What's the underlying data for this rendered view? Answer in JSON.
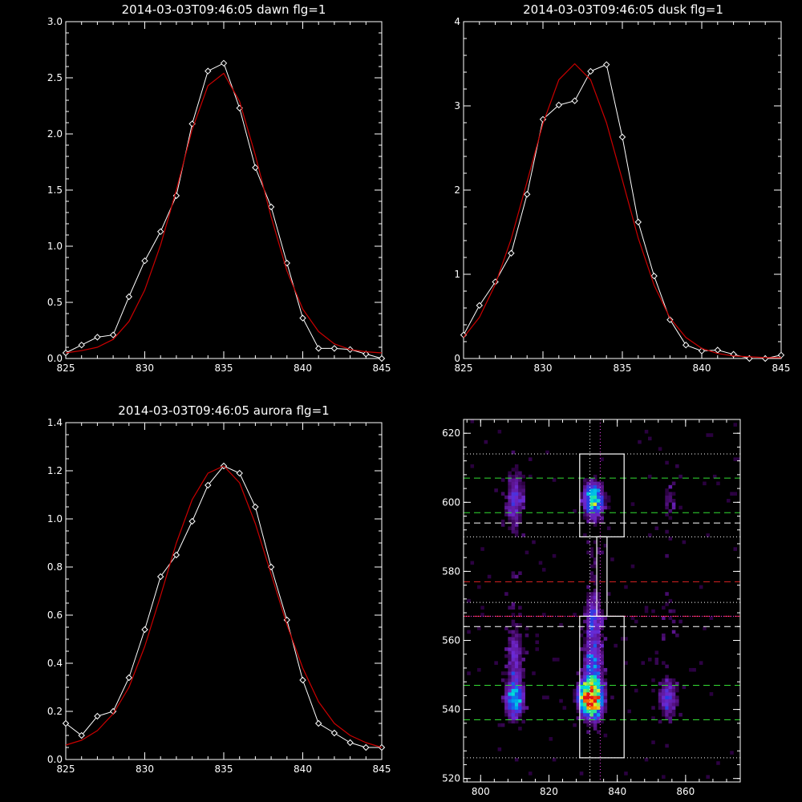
{
  "colors": {
    "background": "#000000",
    "axes": "#ffffff",
    "data_line": "#ffffff",
    "fit_line": "#cc0000",
    "green_dash": "#33dd33",
    "red_dash": "#dd2222",
    "magenta_dot": "#ff44ff",
    "white_dot": "#ffffff"
  },
  "chart_data": [
    {
      "type": "line",
      "title": "2014-03-03T09:46:05 dawn flg=1",
      "xlim": [
        825,
        845
      ],
      "ylim": [
        0,
        3.0
      ],
      "x_tick_labels": [
        "825",
        "830",
        "835",
        "840",
        "845"
      ],
      "y_tick_labels": [
        "0.0",
        "0.5",
        "1.0",
        "1.5",
        "2.0",
        "2.5",
        "3.0"
      ],
      "series": [
        {
          "kind": "data",
          "marker": "diamond",
          "x": [
            825,
            826,
            827,
            828,
            829,
            830,
            831,
            832,
            833,
            834,
            835,
            836,
            837,
            838,
            839,
            840,
            841,
            842,
            843,
            844,
            845
          ],
          "y": [
            0.05,
            0.12,
            0.19,
            0.21,
            0.55,
            0.87,
            1.13,
            1.45,
            2.09,
            2.56,
            2.63,
            2.23,
            1.7,
            1.35,
            0.85,
            0.36,
            0.09,
            0.09,
            0.08,
            0.04,
            0.0
          ]
        },
        {
          "kind": "fit",
          "x": [
            825,
            826,
            827,
            828,
            829,
            830,
            831,
            832,
            833,
            834,
            835,
            836,
            837,
            838,
            839,
            840,
            841,
            842,
            843,
            844,
            845
          ],
          "y": [
            0.05,
            0.07,
            0.1,
            0.17,
            0.33,
            0.61,
            1.01,
            1.5,
            2.04,
            2.43,
            2.54,
            2.29,
            1.81,
            1.26,
            0.78,
            0.44,
            0.24,
            0.13,
            0.08,
            0.06,
            0.05
          ]
        }
      ]
    },
    {
      "type": "line",
      "title": "2014-03-03T09:46:05 dusk flg=1",
      "xlim": [
        825,
        845
      ],
      "ylim": [
        0,
        4
      ],
      "x_tick_labels": [
        "825",
        "830",
        "835",
        "840",
        "845"
      ],
      "y_tick_labels": [
        "0",
        "1",
        "2",
        "3",
        "4"
      ],
      "series": [
        {
          "kind": "data",
          "marker": "diamond",
          "x": [
            825,
            826,
            827,
            828,
            829,
            830,
            831,
            832,
            833,
            834,
            835,
            836,
            837,
            838,
            839,
            840,
            841,
            842,
            843,
            844,
            845
          ],
          "y": [
            0.28,
            0.63,
            0.91,
            1.25,
            1.95,
            2.84,
            3.01,
            3.06,
            3.41,
            3.49,
            2.63,
            1.62,
            0.98,
            0.46,
            0.16,
            0.09,
            0.1,
            0.05,
            0.0,
            0.0,
            0.04
          ]
        },
        {
          "kind": "fit",
          "x": [
            825,
            826,
            827,
            828,
            829,
            830,
            831,
            832,
            833,
            834,
            835,
            836,
            837,
            838,
            839,
            840,
            841,
            842,
            843,
            844,
            845
          ],
          "y": [
            0.25,
            0.49,
            0.88,
            1.42,
            2.1,
            2.79,
            3.31,
            3.5,
            3.31,
            2.8,
            2.12,
            1.43,
            0.87,
            0.48,
            0.25,
            0.12,
            0.06,
            0.03,
            0.02,
            0.01,
            0.01
          ]
        }
      ]
    },
    {
      "type": "line",
      "title": "2014-03-03T09:46:05 aurora flg=1",
      "xlim": [
        825,
        845
      ],
      "ylim": [
        0,
        1.4
      ],
      "x_tick_labels": [
        "825",
        "830",
        "835",
        "840",
        "845"
      ],
      "y_tick_labels": [
        "0.0",
        "0.2",
        "0.4",
        "0.6",
        "0.8",
        "1.0",
        "1.2",
        "1.4"
      ],
      "series": [
        {
          "kind": "data",
          "marker": "diamond",
          "x": [
            825,
            826,
            827,
            828,
            829,
            830,
            831,
            832,
            833,
            834,
            835,
            836,
            837,
            838,
            839,
            840,
            841,
            842,
            843,
            844,
            845
          ],
          "y": [
            0.15,
            0.1,
            0.18,
            0.2,
            0.34,
            0.54,
            0.76,
            0.85,
            0.99,
            1.14,
            1.22,
            1.19,
            1.05,
            0.8,
            0.58,
            0.33,
            0.15,
            0.11,
            0.07,
            0.05,
            0.05
          ]
        },
        {
          "kind": "fit",
          "x": [
            825,
            826,
            827,
            828,
            829,
            830,
            831,
            832,
            833,
            834,
            835,
            836,
            837,
            838,
            839,
            840,
            841,
            842,
            843,
            844,
            845
          ],
          "y": [
            0.06,
            0.08,
            0.12,
            0.19,
            0.3,
            0.47,
            0.68,
            0.9,
            1.08,
            1.19,
            1.22,
            1.15,
            0.98,
            0.77,
            0.56,
            0.38,
            0.24,
            0.15,
            0.1,
            0.07,
            0.05
          ]
        }
      ]
    },
    {
      "type": "heatmap",
      "xlim": [
        795,
        876
      ],
      "ylim": [
        519,
        624
      ],
      "x_tick_labels": [
        "800",
        "820",
        "840",
        "860"
      ],
      "y_tick_labels": [
        "520",
        "540",
        "560",
        "580",
        "600",
        "620"
      ],
      "blobs": [
        {
          "x": 833,
          "y": 601,
          "sx": 2.0,
          "sy": 3.5,
          "amp": 0.68
        },
        {
          "x": 833,
          "y": 543,
          "sx": 2.0,
          "sy": 4.0,
          "amp": 0.98
        },
        {
          "x": 830,
          "y": 544,
          "sx": 1.5,
          "sy": 3.0,
          "amp": 0.45
        },
        {
          "x": 833,
          "y": 554,
          "sx": 2.0,
          "sy": 5.0,
          "amp": 0.4
        },
        {
          "x": 833,
          "y": 566,
          "sx": 1.8,
          "sy": 4.0,
          "amp": 0.3
        },
        {
          "x": 833,
          "y": 580,
          "sx": 1.5,
          "sy": 10.0,
          "amp": 0.13
        },
        {
          "x": 810,
          "y": 543,
          "sx": 2.0,
          "sy": 4.0,
          "amp": 0.52
        },
        {
          "x": 810,
          "y": 556,
          "sx": 2.0,
          "sy": 6.0,
          "amp": 0.22
        },
        {
          "x": 810,
          "y": 601,
          "sx": 2.0,
          "sy": 6.0,
          "amp": 0.3
        },
        {
          "x": 810,
          "y": 575,
          "sx": 1.6,
          "sy": 15.0,
          "amp": 0.08
        },
        {
          "x": 855,
          "y": 543,
          "sx": 2.0,
          "sy": 4.0,
          "amp": 0.32
        },
        {
          "x": 855,
          "y": 600,
          "sx": 2.0,
          "sy": 5.0,
          "amp": 0.15
        },
        {
          "x": 855,
          "y": 565,
          "sx": 2.0,
          "sy": 12.0,
          "amp": 0.08
        }
      ],
      "green_dash_y": [
        607,
        597,
        547,
        537
      ],
      "red_dash_y": [
        577,
        567
      ],
      "white_dash_y": [
        594,
        564
      ],
      "white_dot_y": [
        614,
        590,
        571,
        526
      ],
      "magenta_dot_y": [
        567
      ],
      "vertical_dot_x": [
        832,
        835
      ],
      "boxes": [
        {
          "x0": 829,
          "x1": 842,
          "y0": 590,
          "y1": 614
        },
        {
          "x0": 829,
          "x1": 842,
          "y0": 526,
          "y1": 567
        },
        {
          "x0": 834,
          "x1": 837,
          "y0": 567,
          "y1": 590
        }
      ]
    }
  ]
}
